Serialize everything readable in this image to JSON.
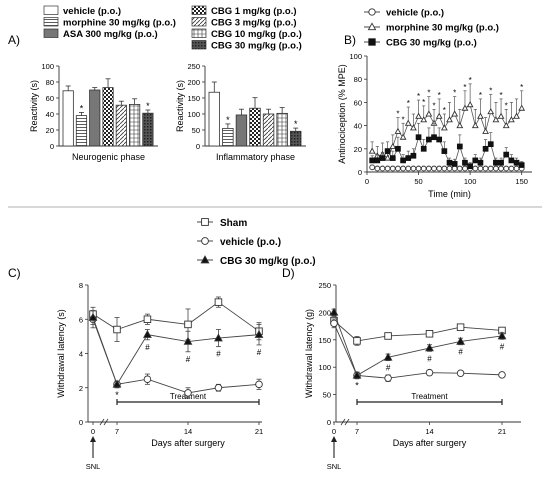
{
  "panels": {
    "A": "A)",
    "B": "B)",
    "C": "C)",
    "D": "D)"
  },
  "legend_A": [
    {
      "label": "vehicle  (p.o.)",
      "pattern": "white"
    },
    {
      "label": "morphine 30 mg/kg  (p.o.)",
      "pattern": "hlines"
    },
    {
      "label": "ASA 300 mg/kg  (p.o.)",
      "pattern": "gray"
    },
    {
      "label": "CBG 1 mg/kg  (p.o.)",
      "pattern": "checker"
    },
    {
      "label": "CBG 3 mg/kg  (p.o.)",
      "pattern": "diag"
    },
    {
      "label": "CBG 10 mg/kg  (p.o.)",
      "pattern": "grid"
    },
    {
      "label": "CBG 30 mg/kg  (p.o.)",
      "pattern": "dark"
    }
  ],
  "legend_B": [
    {
      "label": "vehicle  (p.o.)",
      "marker": "circle"
    },
    {
      "label": "morphine 30 mg/kg  (p.o.)",
      "marker": "triangle-open"
    },
    {
      "label": "CBG 30 mg/kg  (p.o.)",
      "marker": "square-filled"
    }
  ],
  "legend_CD": [
    {
      "label": "Sham",
      "marker": "square-open"
    },
    {
      "label": "vehicle (p.o.)",
      "marker": "circle-open"
    },
    {
      "label": "CBG 30 mg/kg (p.o.)",
      "marker": "triangle-filled"
    }
  ],
  "annotations": {
    "treatment": "Treatment",
    "snl": "SNL",
    "star": "*",
    "hash": "#"
  },
  "chart_data": [
    {
      "id": "A1",
      "type": "bar",
      "xlabel": "Neurogenic phase",
      "ylabel": "Reactivity (s)",
      "ylim": [
        0,
        100
      ],
      "yticks": [
        0,
        20,
        40,
        60,
        80,
        100
      ],
      "series_order": [
        "vehicle",
        "morphine",
        "ASA",
        "CBG1",
        "CBG3",
        "CBG10",
        "CBG30"
      ],
      "values": [
        69,
        38,
        70,
        73,
        51,
        52,
        41
      ],
      "errors": [
        6,
        4,
        3,
        11,
        5,
        7,
        4
      ],
      "significant": [
        false,
        true,
        false,
        false,
        false,
        false,
        true
      ]
    },
    {
      "id": "A2",
      "type": "bar",
      "xlabel": "Inflammatory phase",
      "ylabel": "Reactivity (s)",
      "ylim": [
        0,
        250
      ],
      "yticks": [
        0,
        50,
        100,
        150,
        200,
        250
      ],
      "series_order": [
        "vehicle",
        "morphine",
        "ASA",
        "CBG1",
        "CBG3",
        "CBG10",
        "CBG30"
      ],
      "values": [
        168,
        55,
        97,
        118,
        100,
        102,
        46
      ],
      "errors": [
        32,
        14,
        18,
        33,
        15,
        18,
        10
      ],
      "significant": [
        false,
        true,
        false,
        false,
        false,
        false,
        true
      ]
    },
    {
      "id": "B",
      "type": "line",
      "xlabel": "Time (min)",
      "ylabel": "Antinociception (% MPE)",
      "xlim": [
        0,
        160
      ],
      "xticks": [
        0,
        50,
        100,
        150
      ],
      "ylim": [
        0,
        100
      ],
      "yticks": [
        0,
        20,
        40,
        60,
        80,
        100
      ],
      "x": [
        5,
        10,
        15,
        20,
        25,
        30,
        35,
        40,
        45,
        50,
        55,
        60,
        65,
        70,
        75,
        80,
        85,
        90,
        95,
        100,
        105,
        110,
        115,
        120,
        125,
        130,
        135,
        140,
        145,
        150
      ],
      "series": [
        {
          "name": "vehicle  (p.o.)",
          "marker": "circle",
          "values": [
            4,
            3,
            3,
            3,
            3,
            3,
            3,
            3,
            3,
            3,
            3,
            3,
            3,
            3,
            3,
            3,
            3,
            3,
            3,
            3,
            3,
            3,
            3,
            3,
            3,
            3,
            3,
            3,
            3,
            3
          ],
          "errors": [
            2,
            2,
            2,
            2,
            2,
            2,
            2,
            2,
            2,
            2,
            2,
            2,
            2,
            2,
            2,
            2,
            2,
            2,
            2,
            2,
            2,
            2,
            2,
            2,
            2,
            2,
            2,
            2,
            2,
            2
          ]
        },
        {
          "name": "morphine 30 mg/kg  (p.o.)",
          "marker": "triangle-open",
          "values": [
            18,
            14,
            15,
            12,
            22,
            35,
            30,
            42,
            38,
            48,
            45,
            50,
            42,
            48,
            38,
            45,
            50,
            40,
            55,
            58,
            40,
            48,
            35,
            52,
            45,
            48,
            40,
            45,
            48,
            55
          ],
          "errors": [
            8,
            8,
            10,
            8,
            10,
            12,
            12,
            14,
            12,
            14,
            12,
            15,
            12,
            15,
            12,
            15,
            15,
            14,
            15,
            18,
            14,
            15,
            12,
            15,
            15,
            15,
            14,
            15,
            15,
            15
          ]
        },
        {
          "name": "CBG 30 mg/kg  (p.o.)",
          "marker": "square-filled",
          "values": [
            10,
            10,
            12,
            18,
            12,
            20,
            10,
            12,
            14,
            30,
            20,
            28,
            30,
            28,
            18,
            8,
            7,
            22,
            8,
            5,
            10,
            8,
            20,
            24,
            8,
            8,
            15,
            10,
            8,
            6
          ],
          "errors": [
            4,
            5,
            5,
            8,
            6,
            10,
            5,
            6,
            6,
            12,
            8,
            10,
            12,
            10,
            8,
            4,
            4,
            10,
            4,
            3,
            5,
            4,
            8,
            10,
            4,
            4,
            6,
            5,
            4,
            3
          ]
        }
      ],
      "sig_star_x": [
        30,
        35,
        40,
        50,
        55,
        60,
        65,
        70,
        75,
        85,
        95,
        100,
        110,
        120,
        130,
        135,
        150
      ]
    },
    {
      "id": "C",
      "type": "line",
      "xlabel": "Days after surgery",
      "ylabel": "Withdrawal latency (s)",
      "xticks": [
        0,
        7,
        14,
        21
      ],
      "x": [
        0,
        7,
        10,
        14,
        17,
        21
      ],
      "ylim": [
        0,
        8
      ],
      "yticks": [
        0,
        2,
        4,
        6,
        8
      ],
      "series": [
        {
          "name": "Sham",
          "marker": "square-open",
          "values": [
            6.3,
            5.4,
            6.0,
            5.7,
            7.0,
            5.3
          ],
          "errors": [
            0.4,
            0.7,
            0.3,
            0.9,
            0.3,
            0.5
          ]
        },
        {
          "name": "vehicle (p.o.)",
          "marker": "circle-open",
          "values": [
            6.0,
            2.2,
            2.5,
            1.7,
            2.0,
            2.2
          ],
          "errors": [
            0.5,
            0.2,
            0.3,
            0.3,
            0.2,
            0.3
          ]
        },
        {
          "name": "CBG 30 mg/kg (p.o.)",
          "marker": "triangle-filled",
          "values": [
            6.1,
            2.2,
            5.1,
            4.7,
            4.9,
            5.1
          ],
          "errors": [
            0.4,
            0.2,
            0.3,
            0.6,
            0.5,
            0.6
          ]
        }
      ],
      "sig_star_x": [
        7
      ],
      "sig_hash_x": [
        10,
        14,
        17,
        21
      ]
    },
    {
      "id": "D",
      "type": "line",
      "xlabel": "Days after surgery",
      "ylabel": "Withdrawal latency (g)",
      "xticks": [
        0,
        7,
        14,
        21
      ],
      "x": [
        0,
        7,
        10,
        14,
        17,
        21
      ],
      "ylim": [
        0,
        250
      ],
      "yticks": [
        0,
        50,
        100,
        150,
        200,
        250
      ],
      "series": [
        {
          "name": "Sham",
          "marker": "square-open",
          "values": [
            185,
            148,
            157,
            161,
            173,
            167
          ],
          "errors": [
            8,
            8,
            5,
            5,
            5,
            5
          ]
        },
        {
          "name": "vehicle (p.o.)",
          "marker": "circle-open",
          "values": [
            180,
            85,
            80,
            90,
            89,
            86
          ],
          "errors": [
            8,
            6,
            6,
            4,
            4,
            3
          ]
        },
        {
          "name": "CBG 30 mg/kg (p.o.)",
          "marker": "triangle-filled",
          "values": [
            200,
            85,
            118,
            135,
            147,
            157
          ],
          "errors": [
            6,
            6,
            6,
            6,
            6,
            6
          ]
        }
      ],
      "sig_star_x": [
        7
      ],
      "sig_hash_x": [
        10,
        14,
        17,
        21
      ]
    }
  ]
}
